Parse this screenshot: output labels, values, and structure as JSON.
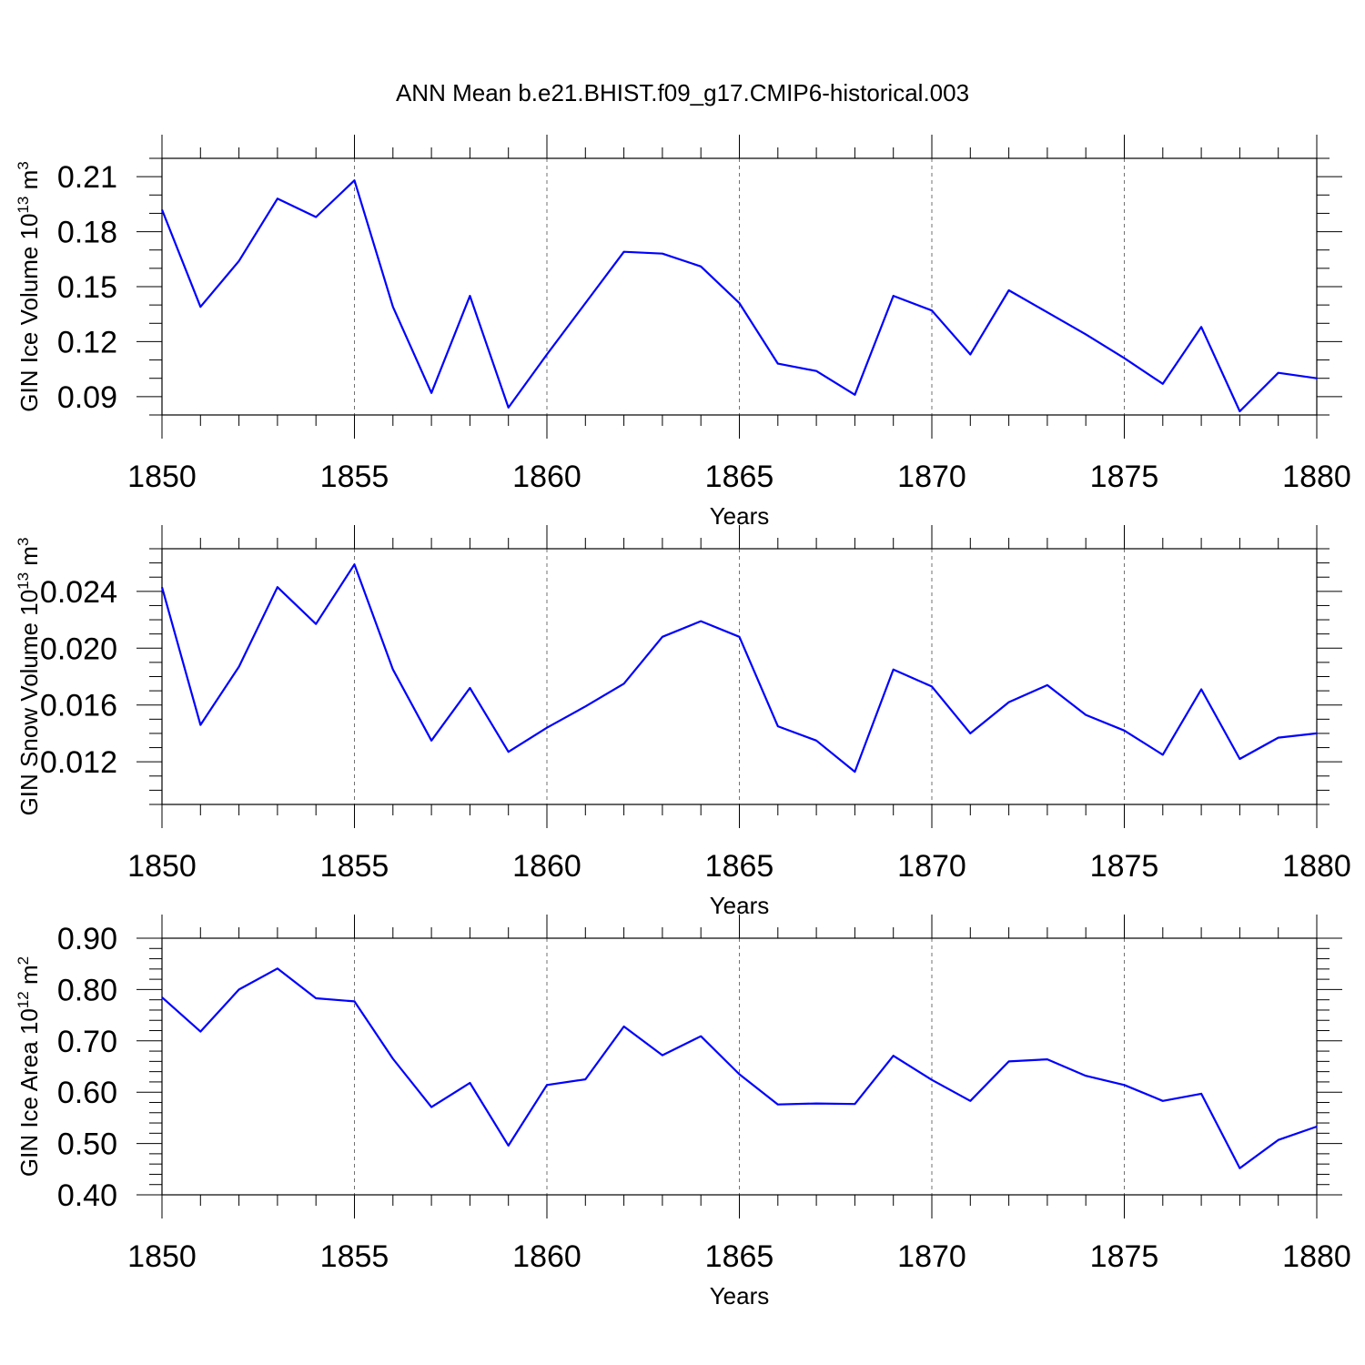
{
  "title": "ANN Mean b.e21.BHIST.f09_g17.CMIP6-historical.003",
  "chart_data": [
    {
      "type": "line",
      "ylabel": "GIN Ice Volume 10",
      "ylabel_exp": "13",
      "ylabel_unit": " m",
      "ylabel_unit_exp": "3",
      "xlabel": "Years",
      "xlim": [
        1850,
        1880
      ],
      "ylim": [
        0.08,
        0.22
      ],
      "yticks": [
        0.09,
        0.12,
        0.15,
        0.18,
        0.21
      ],
      "ytick_labels": [
        "0.09",
        "0.12",
        "0.15",
        "0.18",
        "0.21"
      ],
      "yminor_step": 0.01,
      "xticks": [
        1850,
        1855,
        1860,
        1865,
        1870,
        1875,
        1880
      ],
      "xtick_labels": [
        "1850",
        "1855",
        "1860",
        "1865",
        "1870",
        "1875",
        "1880"
      ],
      "grid_x": [
        1855,
        1860,
        1865,
        1870,
        1875
      ],
      "color": "#0000ff",
      "x": [
        1850,
        1851,
        1852,
        1853,
        1854,
        1855,
        1856,
        1857,
        1858,
        1859,
        1860,
        1861,
        1862,
        1863,
        1864,
        1865,
        1866,
        1867,
        1868,
        1869,
        1870,
        1871,
        1872,
        1873,
        1874,
        1875,
        1876,
        1877,
        1878,
        1879,
        1880
      ],
      "values": [
        0.192,
        0.139,
        0.164,
        0.198,
        0.188,
        0.208,
        0.139,
        0.092,
        0.145,
        0.084,
        0.113,
        0.141,
        0.169,
        0.168,
        0.161,
        0.141,
        0.108,
        0.104,
        0.091,
        0.145,
        0.137,
        0.113,
        0.148,
        0.136,
        0.124,
        0.111,
        0.097,
        0.128,
        0.082,
        0.103,
        0.1
      ]
    },
    {
      "type": "line",
      "ylabel": "GIN Snow Volume 10",
      "ylabel_exp": "13",
      "ylabel_unit": " m",
      "ylabel_unit_exp": "3",
      "xlabel": "Years",
      "xlim": [
        1850,
        1880
      ],
      "ylim": [
        0.009,
        0.027
      ],
      "yticks": [
        0.012,
        0.016,
        0.02,
        0.024
      ],
      "ytick_labels": [
        "0.012",
        "0.016",
        "0.020",
        "0.024"
      ],
      "yminor_step": 0.001,
      "xticks": [
        1850,
        1855,
        1860,
        1865,
        1870,
        1875,
        1880
      ],
      "xtick_labels": [
        "1850",
        "1855",
        "1860",
        "1865",
        "1870",
        "1875",
        "1880"
      ],
      "grid_x": [
        1855,
        1860,
        1865,
        1870,
        1875
      ],
      "color": "#0000ff",
      "x": [
        1850,
        1851,
        1852,
        1853,
        1854,
        1855,
        1856,
        1857,
        1858,
        1859,
        1860,
        1861,
        1862,
        1863,
        1864,
        1865,
        1866,
        1867,
        1868,
        1869,
        1870,
        1871,
        1872,
        1873,
        1874,
        1875,
        1876,
        1877,
        1878,
        1879,
        1880
      ],
      "values": [
        0.0243,
        0.0146,
        0.0187,
        0.0243,
        0.0217,
        0.0259,
        0.0185,
        0.0135,
        0.0172,
        0.0127,
        0.0144,
        0.0159,
        0.0175,
        0.0208,
        0.0219,
        0.0208,
        0.0145,
        0.0135,
        0.0113,
        0.0185,
        0.0173,
        0.014,
        0.0162,
        0.0174,
        0.0153,
        0.0142,
        0.0125,
        0.0171,
        0.0122,
        0.0137,
        0.014
      ]
    },
    {
      "type": "line",
      "ylabel": "GIN Ice Area 10",
      "ylabel_exp": "12",
      "ylabel_unit": " m",
      "ylabel_unit_exp": "2",
      "xlabel": "Years",
      "xlim": [
        1850,
        1880
      ],
      "ylim": [
        0.4,
        0.9
      ],
      "yticks": [
        0.4,
        0.5,
        0.6,
        0.7,
        0.8,
        0.9
      ],
      "ytick_labels": [
        "0.40",
        "0.50",
        "0.60",
        "0.70",
        "0.80",
        "0.90"
      ],
      "yminor_step": 0.02,
      "xticks": [
        1850,
        1855,
        1860,
        1865,
        1870,
        1875,
        1880
      ],
      "xtick_labels": [
        "1850",
        "1855",
        "1860",
        "1865",
        "1870",
        "1875",
        "1880"
      ],
      "grid_x": [
        1855,
        1860,
        1865,
        1870,
        1875
      ],
      "color": "#0000ff",
      "x": [
        1850,
        1851,
        1852,
        1853,
        1854,
        1855,
        1856,
        1857,
        1858,
        1859,
        1860,
        1861,
        1862,
        1863,
        1864,
        1865,
        1866,
        1867,
        1868,
        1869,
        1870,
        1871,
        1872,
        1873,
        1874,
        1875,
        1876,
        1877,
        1878,
        1879,
        1880
      ],
      "values": [
        0.785,
        0.718,
        0.8,
        0.841,
        0.783,
        0.777,
        0.665,
        0.571,
        0.618,
        0.496,
        0.614,
        0.625,
        0.728,
        0.672,
        0.709,
        0.635,
        0.576,
        0.578,
        0.577,
        0.671,
        0.624,
        0.583,
        0.66,
        0.664,
        0.632,
        0.614,
        0.583,
        0.597,
        0.452,
        0.507,
        0.533
      ]
    }
  ]
}
